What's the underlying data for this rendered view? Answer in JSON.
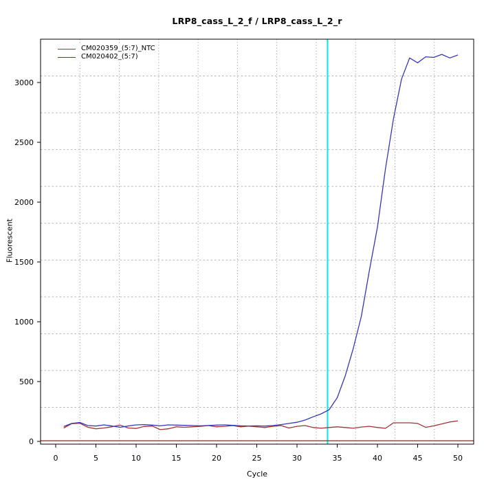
{
  "title": "LRP8_cass_L_2_f / LRP8_cass_L_2_r",
  "x_axis": {
    "label": "Cycle",
    "ticks": [
      0,
      5,
      10,
      15,
      20,
      25,
      30,
      35,
      40,
      45,
      50
    ]
  },
  "y_axis": {
    "label": "Fluorescent",
    "ticks": [
      0,
      500,
      1000,
      1500,
      2000,
      2500,
      3000
    ]
  },
  "legend": [
    {
      "label": "CM020359_(5:7)_NTC",
      "color": "#a03232"
    },
    {
      "label": "CM020402_(5:7)",
      "color": "#3636b2"
    }
  ],
  "colors": {
    "grid_horizontal": "#b4b4b4",
    "grid_vertical": "#8a8a8a",
    "marker_line": "#00e8e8",
    "threshold_line": "#8b2222",
    "axis": "#000000"
  },
  "marker_line": {
    "cycle": 33.8
  },
  "threshold_line": {
    "value": 5
  },
  "chart_data": {
    "type": "line",
    "title": "LRP8_cass_L_2_f / LRP8_cass_L_2_r",
    "xlabel": "Cycle",
    "ylabel": "Fluorescent",
    "xlim": [
      0,
      50
    ],
    "ylim": [
      0,
      3250
    ],
    "grid": "11x11 dotted",
    "legend_position": "top-left",
    "x": [
      1,
      2,
      3,
      4,
      5,
      6,
      7,
      8,
      9,
      10,
      11,
      12,
      13,
      14,
      15,
      16,
      17,
      18,
      19,
      20,
      21,
      22,
      23,
      24,
      25,
      26,
      27,
      28,
      29,
      30,
      31,
      32,
      33,
      34,
      35,
      36,
      37,
      38,
      39,
      40,
      41,
      42,
      43,
      44,
      45,
      46,
      47,
      48,
      49,
      50
    ],
    "series": [
      {
        "name": "CM020359_(5:7)_NTC",
        "color": "#a03232",
        "values": [
          112,
          148,
          152,
          118,
          105,
          112,
          122,
          136,
          112,
          108,
          125,
          128,
          98,
          105,
          122,
          118,
          122,
          126,
          132,
          122,
          126,
          132,
          122,
          128,
          122,
          116,
          126,
          132,
          112,
          126,
          132,
          116,
          110,
          116,
          122,
          116,
          110,
          120,
          126,
          116,
          109,
          155,
          155,
          155,
          150,
          117,
          130,
          146,
          162,
          172
        ]
      },
      {
        "name": "CM020402_(5:7)",
        "color": "#3636b2",
        "values": [
          125,
          150,
          158,
          132,
          128,
          138,
          128,
          118,
          128,
          138,
          140,
          136,
          130,
          138,
          136,
          134,
          132,
          130,
          133,
          136,
          138,
          134,
          130,
          128,
          130,
          128,
          132,
          140,
          150,
          160,
          178,
          205,
          230,
          265,
          365,
          548,
          778,
          1046,
          1429,
          1790,
          2280,
          2700,
          3030,
          3205,
          3165,
          3215,
          3210,
          3235,
          3205,
          3230
        ]
      }
    ],
    "annotations": [
      {
        "type": "vline",
        "x": 33.8,
        "color": "#00e8e8",
        "name": "ct-marker"
      },
      {
        "type": "hline",
        "y": 5,
        "color": "#8b2222",
        "name": "threshold"
      }
    ]
  }
}
